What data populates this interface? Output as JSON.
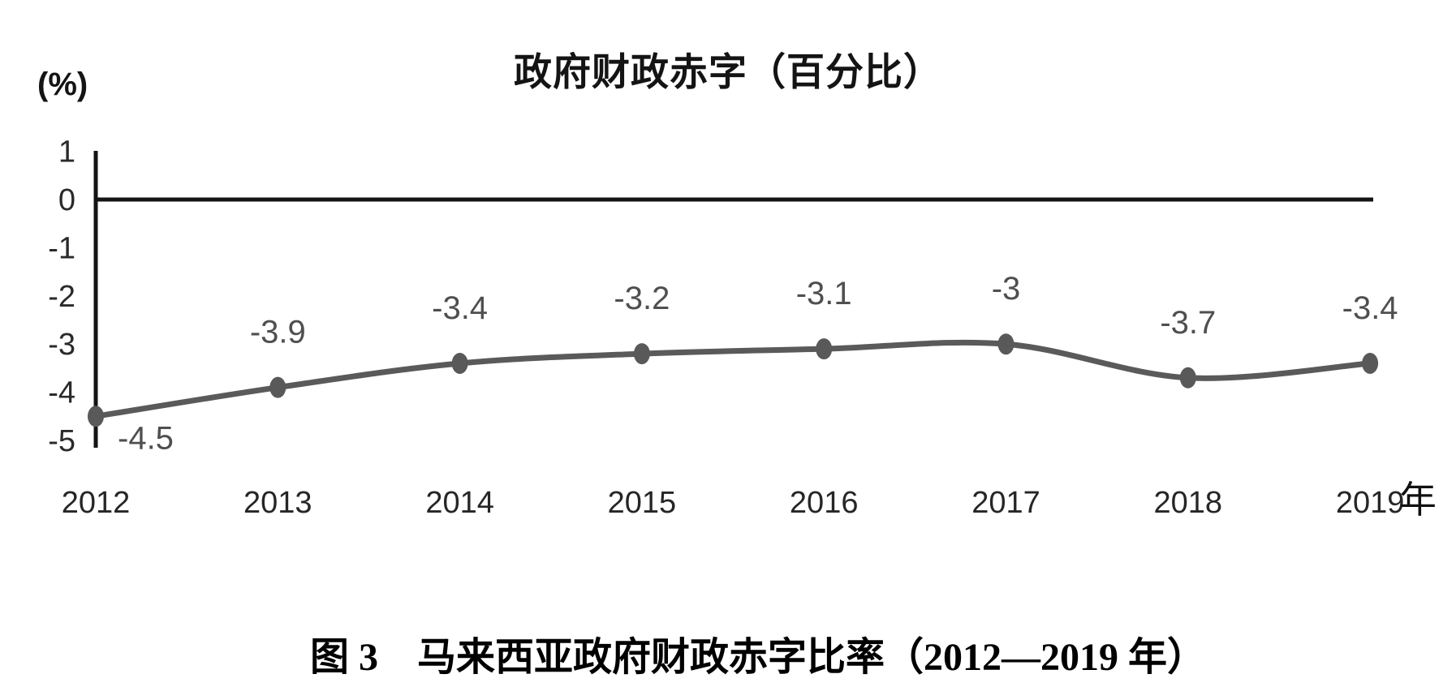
{
  "chart_data": {
    "type": "line",
    "title": "政府财政赤字（百分比）",
    "y_axis_unit_label": "(%)",
    "x_axis_suffix": "年",
    "categories": [
      "2012",
      "2013",
      "2014",
      "2015",
      "2016",
      "2017",
      "2018",
      "2019"
    ],
    "series": [
      {
        "name": "政府财政赤字",
        "values": [
          -4.5,
          -3.9,
          -3.4,
          -3.2,
          -3.1,
          -3,
          -3.7,
          -3.4
        ]
      }
    ],
    "data_labels": [
      "-4.5",
      "-3.9",
      "-3.4",
      "-3.2",
      "-3.1",
      "-3",
      "-3.7",
      "-3.4"
    ],
    "y_ticks": [
      "1",
      "0",
      "-1",
      "-2",
      "-3",
      "-4",
      "-5"
    ],
    "ylim": [
      -5,
      1
    ],
    "xlabel": "",
    "ylabel": "(%)",
    "grid": false,
    "legend": "none",
    "colors": {
      "line": "#5a5a5a",
      "marker": "#595959",
      "data_label": "#4f4f4f",
      "tick_label": "#2a2a2a",
      "year_label": "#262626",
      "axis": "#141414",
      "background": "#ffffff"
    }
  },
  "caption": {
    "text": "图 3　马来西亚政府财政赤字比率（2012—2019 年）"
  }
}
